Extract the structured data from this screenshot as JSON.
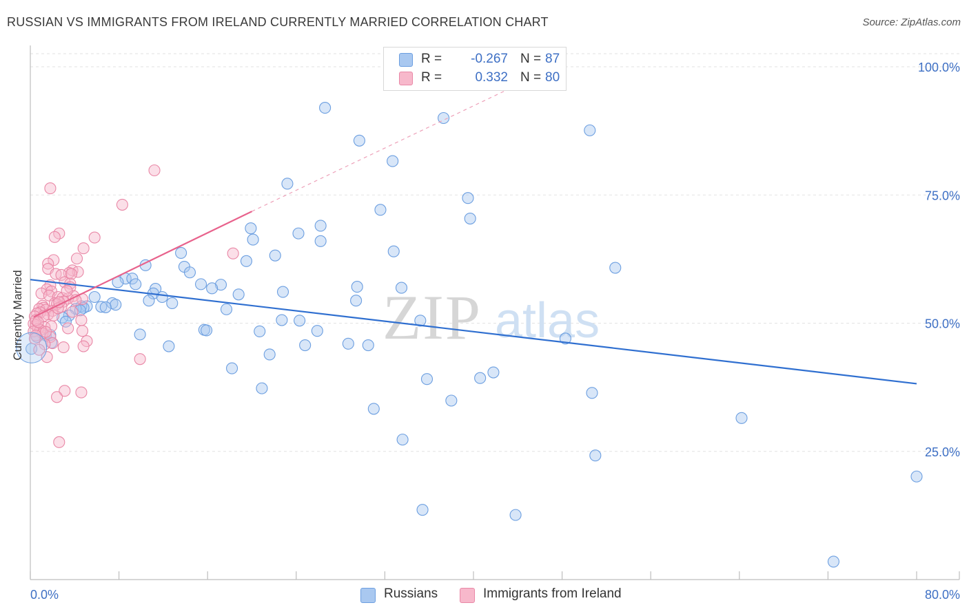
{
  "title": "RUSSIAN VS IMMIGRANTS FROM IRELAND CURRENTLY MARRIED CORRELATION CHART",
  "source": "Source: ZipAtlas.com",
  "watermark": {
    "zip": "ZIP",
    "atlas": "atlas"
  },
  "legend": {
    "rows": [
      {
        "r_label": "R =",
        "r_value": "-0.267",
        "n_label": "N =",
        "n_value": "87",
        "color": "#a9c8f0",
        "border": "#6b9ee0"
      },
      {
        "r_label": "R =",
        "r_value": "0.332",
        "n_label": "N =",
        "n_value": "80",
        "color": "#f7b8cb",
        "border": "#e987a6"
      }
    ]
  },
  "bottom_legend": [
    {
      "label": "Russians",
      "color": "#a9c8f0",
      "border": "#6b9ee0"
    },
    {
      "label": "Immigrants from Ireland",
      "color": "#f7b8cb",
      "border": "#e987a6"
    }
  ],
  "chart_data": {
    "type": "scatter",
    "title": "RUSSIAN VS IMMIGRANTS FROM IRELAND CURRENTLY MARRIED CORRELATION CHART",
    "xlabel": "",
    "ylabel": "Currently Married",
    "xlim": [
      0,
      80
    ],
    "ylim": [
      0,
      105
    ],
    "x_tick_labels": [
      "0.0%",
      "80.0%"
    ],
    "y_ticks": [
      25,
      50,
      75,
      100
    ],
    "y_tick_labels": [
      "25.0%",
      "50.0%",
      "75.0%",
      "100.0%"
    ],
    "grid": true,
    "series": [
      {
        "name": "Russians",
        "color": "#6b9ee0",
        "fill": "#a9c8f0",
        "trend": {
          "x": [
            0,
            80
          ],
          "y": [
            58.5,
            38.2
          ],
          "dash_to": null
        },
        "points": [
          [
            26.6,
            92
          ],
          [
            37.3,
            90
          ],
          [
            50.5,
            87.6
          ],
          [
            29.7,
            85.6
          ],
          [
            32.7,
            81.6
          ],
          [
            23.2,
            77.2
          ],
          [
            39.5,
            74.4
          ],
          [
            31.6,
            72.1
          ],
          [
            39.7,
            70.4
          ],
          [
            26.2,
            69
          ],
          [
            19.9,
            68.5
          ],
          [
            24.2,
            67.5
          ],
          [
            20.1,
            66.3
          ],
          [
            26.2,
            66
          ],
          [
            32.8,
            64
          ],
          [
            13.6,
            63.7
          ],
          [
            22.1,
            63.2
          ],
          [
            19.5,
            62.1
          ],
          [
            10.4,
            61.3
          ],
          [
            13.9,
            61
          ],
          [
            52.8,
            60.8
          ],
          [
            14.4,
            59.9
          ],
          [
            8.6,
            58.7
          ],
          [
            9.2,
            58.7
          ],
          [
            7.9,
            58
          ],
          [
            15.4,
            57.6
          ],
          [
            9.5,
            57.6
          ],
          [
            17.2,
            57.5
          ],
          [
            29.5,
            57.1
          ],
          [
            33.5,
            56.9
          ],
          [
            16.4,
            56.8
          ],
          [
            11.3,
            56.7
          ],
          [
            22.8,
            56.1
          ],
          [
            11.1,
            55.8
          ],
          [
            18.8,
            55.6
          ],
          [
            11.9,
            55.1
          ],
          [
            5.8,
            55.1
          ],
          [
            10.7,
            54.4
          ],
          [
            12.8,
            53.9
          ],
          [
            29.4,
            54.4
          ],
          [
            7.4,
            53.9
          ],
          [
            7.7,
            53.6
          ],
          [
            5.1,
            53.3
          ],
          [
            6.4,
            53.2
          ],
          [
            4.6,
            53.3
          ],
          [
            6.8,
            53.1
          ],
          [
            4.8,
            53
          ],
          [
            4.1,
            52.8
          ],
          [
            17.7,
            52.7
          ],
          [
            4.5,
            52.5
          ],
          [
            3.5,
            51.5
          ],
          [
            2.9,
            51.1
          ],
          [
            22.7,
            50.6
          ],
          [
            24.3,
            50.5
          ],
          [
            35.2,
            50.5
          ],
          [
            3.2,
            50.3
          ],
          [
            15.7,
            48.7
          ],
          [
            15.9,
            48.6
          ],
          [
            20.7,
            48.4
          ],
          [
            25.9,
            48.5
          ],
          [
            9.9,
            47.8
          ],
          [
            1.4,
            47.6
          ],
          [
            0.6,
            47.3
          ],
          [
            1.9,
            46.2
          ],
          [
            48.3,
            47
          ],
          [
            28.7,
            46
          ],
          [
            30.5,
            45.7
          ],
          [
            24.8,
            45.7
          ],
          [
            12.5,
            45.5
          ],
          [
            21.6,
            43.9
          ],
          [
            18.2,
            41.2
          ],
          [
            0.1,
            45
          ],
          [
            35.8,
            39.1
          ],
          [
            40.6,
            39.3
          ],
          [
            41.8,
            40.4
          ],
          [
            20.9,
            37.3
          ],
          [
            50.7,
            36.4
          ],
          [
            38,
            34.9
          ],
          [
            31,
            33.3
          ],
          [
            64.2,
            31.5
          ],
          [
            33.6,
            27.3
          ],
          [
            51,
            24.2
          ],
          [
            80,
            20.1
          ],
          [
            35.4,
            13.6
          ],
          [
            43.8,
            12.6
          ],
          [
            72.5,
            3.5
          ],
          [
            1.8,
            47.7
          ]
        ]
      },
      {
        "name": "Immigrants from Ireland",
        "color": "#e987a6",
        "fill": "#f7b8cb",
        "trend": {
          "x": [
            0.3,
            20
          ],
          "y": [
            51.2,
            71.8
          ],
          "dash_to": [
            44,
            96.5
          ]
        },
        "points": [
          [
            11.2,
            79.8
          ],
          [
            1.8,
            76.3
          ],
          [
            8.3,
            73.1
          ],
          [
            2.6,
            67.5
          ],
          [
            2.2,
            66.8
          ],
          [
            5.8,
            66.7
          ],
          [
            4.8,
            64.6
          ],
          [
            18.3,
            63.6
          ],
          [
            4.2,
            62.6
          ],
          [
            2.1,
            62.3
          ],
          [
            1.6,
            61.6
          ],
          [
            1.6,
            60.6
          ],
          [
            3.8,
            60.3
          ],
          [
            4.3,
            60
          ],
          [
            3.5,
            59.8
          ],
          [
            2.3,
            59.6
          ],
          [
            2.8,
            59.4
          ],
          [
            3.7,
            59.6
          ],
          [
            3.1,
            58
          ],
          [
            3.6,
            57.7
          ],
          [
            1.8,
            57.4
          ],
          [
            3.6,
            57
          ],
          [
            1.5,
            56.6
          ],
          [
            1.9,
            56.2
          ],
          [
            1,
            55.8
          ],
          [
            1.7,
            55.4
          ],
          [
            3.9,
            55.3
          ],
          [
            2.5,
            55.1
          ],
          [
            2.9,
            54.9
          ],
          [
            3.4,
            54.8
          ],
          [
            4.7,
            54.7
          ],
          [
            4.1,
            54.5
          ],
          [
            3,
            54.2
          ],
          [
            2.2,
            53.9
          ],
          [
            2.4,
            53.7
          ],
          [
            1.1,
            53.4
          ],
          [
            2.8,
            53.2
          ],
          [
            1.2,
            53
          ],
          [
            0.8,
            52.8
          ],
          [
            1.4,
            52.6
          ],
          [
            2,
            52.4
          ],
          [
            3.8,
            52.2
          ],
          [
            0.9,
            52.1
          ],
          [
            0.6,
            51.9
          ],
          [
            1.6,
            51.7
          ],
          [
            2.1,
            51.5
          ],
          [
            0.4,
            51.3
          ],
          [
            4.6,
            50.6
          ],
          [
            0.3,
            49.9
          ],
          [
            0.5,
            49.6
          ],
          [
            1.3,
            49.2
          ],
          [
            0.7,
            48.9
          ],
          [
            3.4,
            49
          ],
          [
            0.9,
            48.7
          ],
          [
            0.3,
            48.4
          ],
          [
            4.7,
            48.5
          ],
          [
            1.1,
            48
          ],
          [
            0.5,
            47.6
          ],
          [
            1.8,
            47.3
          ],
          [
            0.4,
            47
          ],
          [
            5.1,
            46.5
          ],
          [
            2,
            46.1
          ],
          [
            1.3,
            45.9
          ],
          [
            4.8,
            45.5
          ],
          [
            3,
            45.3
          ],
          [
            0.8,
            44.8
          ],
          [
            1.5,
            43.4
          ],
          [
            9.9,
            43
          ],
          [
            3.1,
            36.8
          ],
          [
            4.6,
            36.5
          ],
          [
            2.4,
            35.6
          ],
          [
            2.6,
            26.8
          ],
          [
            0.5,
            50.6
          ],
          [
            1.2,
            51.4
          ],
          [
            2.5,
            52.9
          ],
          [
            3.3,
            56.3
          ],
          [
            0.7,
            50.2
          ],
          [
            1.9,
            49.4
          ],
          [
            2.6,
            54.1
          ],
          [
            1.4,
            48.3
          ]
        ]
      }
    ]
  }
}
